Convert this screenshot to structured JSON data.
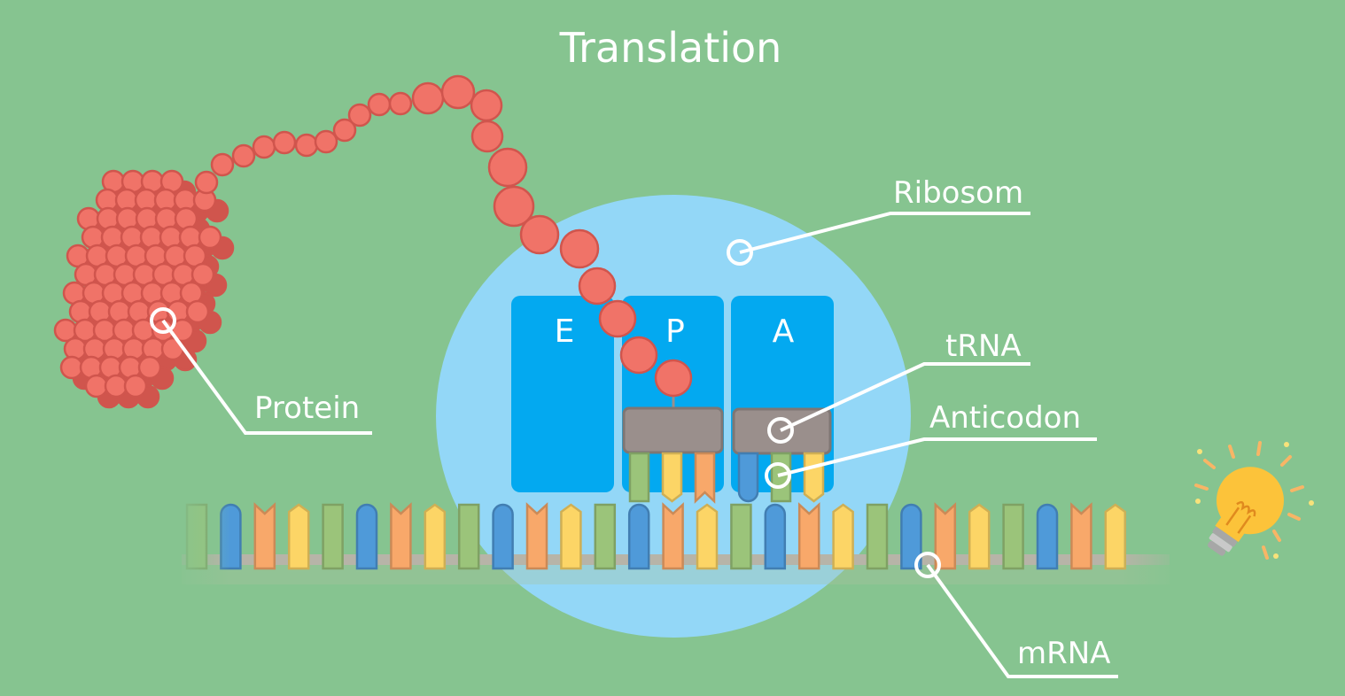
{
  "title": "Translation",
  "sites": {
    "e": "E",
    "p": "P",
    "a": "A"
  },
  "labels": {
    "ribosom": "Ribosom",
    "trna": "tRNA",
    "anticodon": "Anticodon",
    "protein": "Protein",
    "mrna": "mRNA"
  },
  "colors": {
    "background": "#86c490",
    "ribosome": "#93d7f7",
    "site": "#03a9f0",
    "protein": "#f07368",
    "protein_dark": "#d0554d",
    "trna_head": "#9a8f8c",
    "line": "#ffffff",
    "mrna_backbone": "#b7b4a8",
    "nucleotide_green": "#9bc47a",
    "nucleotide_blue": "#4f9ad9",
    "nucleotide_orange": "#f8a86a",
    "nucleotide_yellow": "#fcd566",
    "bulb": "#fcc33a"
  },
  "mrna_sequence": [
    "green",
    "blue",
    "orange",
    "yellow",
    "green",
    "blue",
    "orange",
    "yellow",
    "green",
    "blue",
    "orange",
    "yellow",
    "green",
    "blue",
    "orange",
    "yellow",
    "green",
    "blue",
    "orange",
    "yellow",
    "green",
    "blue",
    "orange",
    "yellow",
    "green",
    "blue",
    "orange",
    "yellow"
  ],
  "p_site_anticodon": [
    "green",
    "yellow",
    "orange"
  ],
  "a_site_anticodon": [
    "blue",
    "green",
    "yellow"
  ],
  "icons": {
    "hint": "lightbulb-icon"
  }
}
